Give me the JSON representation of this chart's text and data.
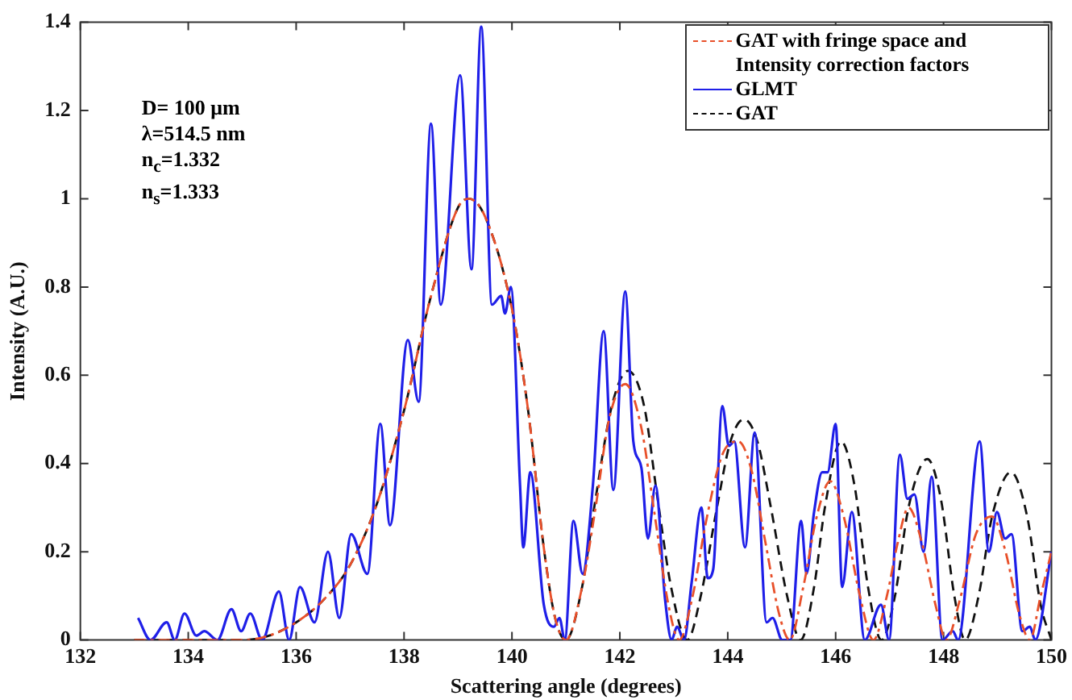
{
  "chart_data": {
    "type": "line",
    "xlabel": "Scattering angle (degrees)",
    "ylabel": "Intensity (A.U.)",
    "xlim": [
      132,
      150
    ],
    "xticks": [
      132,
      134,
      136,
      138,
      140,
      142,
      144,
      146,
      148,
      150
    ],
    "ylim": [
      0,
      1.4
    ],
    "yticks": [
      0,
      0.2,
      0.4,
      0.6,
      0.8,
      1,
      1.2,
      1.4
    ],
    "grid": false,
    "legend": "top right",
    "marker": "none",
    "annotations": [
      "D= 100 μm",
      "λ=514.5 nm",
      "n$_{c}$=1.332",
      "n$_{s}$=1.333"
    ],
    "series": [
      {
        "name": "GAT with fringe space and Intensity correction factors",
        "color": "#e8502a",
        "line_style": "dashdot",
        "x": [
          133,
          135,
          135.5,
          136,
          136.5,
          137,
          137.5,
          138,
          138.5,
          139,
          139.2,
          139.5,
          140,
          140.3,
          140.6,
          140.8,
          141,
          141.3,
          141.55,
          141.8,
          142.1,
          142.4,
          142.65,
          142.9,
          143.1,
          143.35,
          143.6,
          143.9,
          144.2,
          144.45,
          144.7,
          144.95,
          145.15,
          145.4,
          145.65,
          145.9,
          146.15,
          146.45,
          146.7,
          146.95,
          147.15,
          147.35,
          147.6,
          147.85,
          148.05,
          148.3,
          148.6,
          148.9,
          149.15,
          149.4,
          149.6,
          149.8,
          150
        ],
        "values": [
          0,
          0,
          0.01,
          0.04,
          0.09,
          0.17,
          0.31,
          0.52,
          0.78,
          0.98,
          1,
          0.96,
          0.75,
          0.52,
          0.2,
          0.05,
          0,
          0.12,
          0.3,
          0.5,
          0.58,
          0.48,
          0.28,
          0.08,
          0,
          0.1,
          0.27,
          0.42,
          0.45,
          0.38,
          0.22,
          0.06,
          0,
          0.12,
          0.28,
          0.36,
          0.28,
          0.1,
          0,
          0.1,
          0.22,
          0.3,
          0.22,
          0.08,
          0,
          0.09,
          0.24,
          0.28,
          0.2,
          0.06,
          0,
          0.1,
          0.2
        ]
      },
      {
        "name": "GLMT",
        "color": "#1f1fe8",
        "line_style": "solid",
        "x": [
          133.07,
          133.3,
          133.6,
          133.75,
          133.93,
          134.15,
          134.3,
          134.54,
          134.8,
          134.98,
          135.15,
          135.37,
          135.68,
          135.87,
          136.07,
          136.34,
          136.59,
          136.8,
          137.02,
          137.32,
          137.56,
          137.74,
          138.07,
          138.27,
          138.5,
          138.68,
          139.04,
          139.25,
          139.43,
          139.63,
          139.8,
          139.87,
          139.98,
          140.15,
          140.21,
          140.34,
          140.59,
          140.78,
          140.88,
          140.98,
          141.14,
          141.31,
          141.5,
          141.7,
          141.88,
          142.1,
          142.25,
          142.4,
          142.52,
          142.66,
          142.84,
          142.96,
          143.06,
          143.19,
          143.33,
          143.51,
          143.63,
          143.73,
          143.9,
          144.02,
          144.12,
          144.32,
          144.5,
          144.72,
          144.83,
          145.01,
          145.16,
          145.36,
          145.46,
          145.6,
          145.75,
          145.85,
          146,
          146.12,
          146.3,
          146.54,
          146.84,
          146.99,
          147.19,
          147.33,
          147.46,
          147.63,
          147.78,
          147.98,
          148.17,
          148.27,
          148.67,
          148.84,
          148.99,
          149.14,
          149.26,
          149.46,
          149.6,
          149.7,
          150
        ],
        "values": [
          0.05,
          0,
          0.04,
          0,
          0.06,
          0.01,
          0.02,
          0,
          0.07,
          0.02,
          0.06,
          0,
          0.11,
          0,
          0.12,
          0.04,
          0.2,
          0.05,
          0.24,
          0.15,
          0.49,
          0.26,
          0.68,
          0.54,
          1.17,
          0.76,
          1.28,
          0.84,
          1.39,
          0.76,
          0.78,
          0.74,
          0.8,
          0.35,
          0.21,
          0.38,
          0.08,
          0.03,
          0.05,
          0,
          0.27,
          0.15,
          0.35,
          0.7,
          0.34,
          0.79,
          0.45,
          0.39,
          0.23,
          0.35,
          0.09,
          0,
          0.03,
          0,
          0.13,
          0.3,
          0.14,
          0.16,
          0.53,
          0.44,
          0.45,
          0.21,
          0.47,
          0.04,
          0.05,
          0,
          0,
          0.27,
          0.15,
          0.29,
          0.38,
          0.38,
          0.49,
          0.12,
          0.29,
          0,
          0.08,
          0,
          0.42,
          0.32,
          0.33,
          0.2,
          0.37,
          0,
          0.02,
          0,
          0.45,
          0.2,
          0.29,
          0.23,
          0.24,
          0.02,
          0.03,
          0,
          0.2
        ]
      },
      {
        "name": "GAT",
        "color": "#111111",
        "line_style": "dashed",
        "x": [
          133,
          135,
          135.5,
          136,
          136.5,
          137,
          137.5,
          138,
          138.5,
          139,
          139.2,
          139.5,
          140,
          140.3,
          140.6,
          140.8,
          141,
          141.3,
          141.55,
          141.85,
          142.15,
          142.45,
          142.7,
          142.95,
          143.25,
          143.5,
          143.8,
          144.05,
          144.3,
          144.55,
          144.8,
          145.1,
          145.35,
          145.6,
          145.8,
          146.1,
          146.35,
          146.6,
          146.85,
          147.1,
          147.35,
          147.7,
          147.95,
          148.2,
          148.4,
          148.65,
          148.9,
          149.25,
          149.55,
          149.8,
          150
        ],
        "values": [
          0,
          0,
          0.01,
          0.04,
          0.09,
          0.17,
          0.31,
          0.52,
          0.78,
          0.98,
          1,
          0.96,
          0.75,
          0.52,
          0.2,
          0.05,
          0,
          0.12,
          0.32,
          0.53,
          0.61,
          0.53,
          0.32,
          0.12,
          0,
          0.1,
          0.3,
          0.45,
          0.5,
          0.45,
          0.3,
          0.1,
          0,
          0.12,
          0.3,
          0.45,
          0.35,
          0.12,
          0,
          0.1,
          0.3,
          0.41,
          0.32,
          0.1,
          0,
          0.1,
          0.28,
          0.38,
          0.28,
          0.08,
          0
        ]
      }
    ]
  }
}
